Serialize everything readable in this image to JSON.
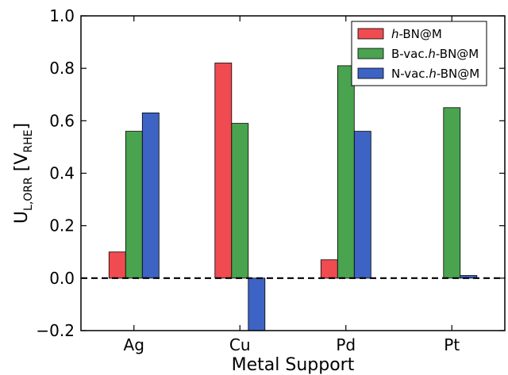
{
  "chart_data": {
    "type": "bar",
    "title": "",
    "xlabel": "Metal Support",
    "ylabel": {
      "main": "U",
      "sub": "L,ORR",
      "unit_main": "V",
      "unit_sub": "RHE"
    },
    "categories": [
      "Ag",
      "Cu",
      "Pd",
      "Pt"
    ],
    "ylim": [
      -0.2,
      1.0
    ],
    "yticks": [
      "−0.2",
      "0.0",
      "0.2",
      "0.4",
      "0.6",
      "0.8",
      "1.0"
    ],
    "ytick_values": [
      -0.2,
      0.0,
      0.2,
      0.4,
      0.6,
      0.8,
      1.0
    ],
    "grid": false,
    "legend_position": "top-right",
    "reference_line": {
      "y": 0.0,
      "style": "dashed",
      "color": "#000000"
    },
    "series": [
      {
        "name_prefix": "h",
        "name_rest": "-BN@M",
        "color": "#ef4b50",
        "values": [
          0.1,
          0.82,
          0.07,
          0.0
        ]
      },
      {
        "name_prefix_plain": "B-vac.",
        "name_italic": "h",
        "name_rest": "-BN@M",
        "color": "#4aa34f",
        "values": [
          0.56,
          0.59,
          0.81,
          0.65
        ]
      },
      {
        "name_prefix_plain": "N-vac.",
        "name_italic": "h",
        "name_rest": "-BN@M",
        "color": "#3d63c4",
        "values": [
          0.63,
          -0.2,
          0.56,
          0.01
        ]
      }
    ]
  }
}
